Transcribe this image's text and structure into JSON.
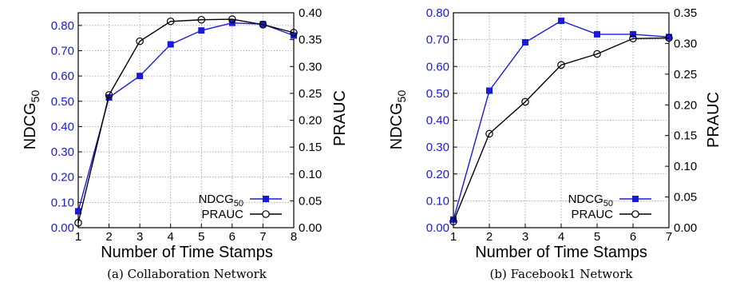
{
  "chart_data": [
    {
      "type": "line",
      "caption": "(a) Collaboration Network",
      "xlabel": "Number of Time Stamps",
      "ylabel_left": "NDCG",
      "ylabel_left_sub": "50",
      "ylabel_right": "PRAUC",
      "x": [
        1,
        2,
        3,
        4,
        5,
        6,
        7,
        8
      ],
      "xlim": [
        1,
        8
      ],
      "ylim_left": [
        0,
        0.85
      ],
      "ylim_right": [
        0,
        0.4
      ],
      "yticks_left": [
        "0.00",
        "0.10",
        "0.20",
        "0.30",
        "0.40",
        "0.50",
        "0.60",
        "0.70",
        "0.80"
      ],
      "yticks_right": [
        "0.00",
        "0.05",
        "0.10",
        "0.15",
        "0.20",
        "0.25",
        "0.30",
        "0.35",
        "0.40"
      ],
      "grid": true,
      "legend_position": "bottom-right",
      "series": [
        {
          "name": "NDCG",
          "name_sub": "50",
          "axis": "left",
          "color": "#1a1ad9",
          "marker": "filled-square",
          "values": [
            0.065,
            0.515,
            0.6,
            0.725,
            0.78,
            0.81,
            0.805,
            0.76
          ]
        },
        {
          "name": "PRAUC",
          "axis": "right",
          "color": "#000000",
          "marker": "open-circle",
          "values": [
            0.009,
            0.247,
            0.347,
            0.384,
            0.387,
            0.388,
            0.378,
            0.363
          ]
        }
      ]
    },
    {
      "type": "line",
      "caption": "(b) Facebook1 Network",
      "xlabel": "Number of Time Stamps",
      "ylabel_left": "NDCG",
      "ylabel_left_sub": "50",
      "ylabel_right": "PRAUC",
      "x": [
        1,
        2,
        3,
        4,
        5,
        6,
        7
      ],
      "xlim": [
        1,
        7
      ],
      "ylim_left": [
        0,
        0.8
      ],
      "ylim_right": [
        0,
        0.35
      ],
      "yticks_left": [
        "0.00",
        "0.10",
        "0.20",
        "0.30",
        "0.40",
        "0.50",
        "0.60",
        "0.70",
        "0.80"
      ],
      "yticks_right": [
        "0.00",
        "0.05",
        "0.10",
        "0.15",
        "0.20",
        "0.25",
        "0.30",
        "0.35"
      ],
      "grid": true,
      "legend_position": "bottom-right",
      "series": [
        {
          "name": "NDCG",
          "name_sub": "50",
          "axis": "left",
          "color": "#1a1ad9",
          "marker": "filled-square",
          "values": [
            0.03,
            0.51,
            0.69,
            0.77,
            0.72,
            0.72,
            0.71
          ]
        },
        {
          "name": "PRAUC",
          "axis": "right",
          "color": "#000000",
          "marker": "open-circle",
          "values": [
            0.01,
            0.153,
            0.205,
            0.265,
            0.283,
            0.308,
            0.309
          ]
        }
      ]
    }
  ]
}
